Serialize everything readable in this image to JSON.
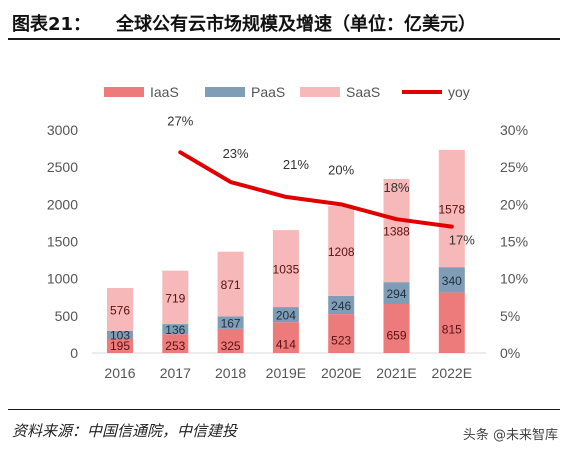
{
  "header": {
    "prefix": "图表21：",
    "title": "全球公有云市场规模及增速（单位：亿美元）"
  },
  "footer": {
    "source": "资料来源：中国信通院，中信建投",
    "watermark": "头条 @未来智库"
  },
  "chart_data": {
    "type": "bar",
    "stacked": true,
    "categories": [
      "2016",
      "2017",
      "2018",
      "2019E",
      "2020E",
      "2021E",
      "2022E"
    ],
    "series": [
      {
        "name": "IaaS",
        "values": [
          195,
          253,
          325,
          414,
          523,
          659,
          815
        ],
        "color": "#ee7b7b"
      },
      {
        "name": "PaaS",
        "values": [
          103,
          136,
          167,
          204,
          246,
          294,
          340
        ],
        "color": "#7f9db6"
      },
      {
        "name": "SaaS",
        "values": [
          576,
          719,
          871,
          1035,
          1208,
          1388,
          1578
        ],
        "color": "#f6b8b8"
      }
    ],
    "line_series": {
      "name": "yoy",
      "x": [
        "2017",
        "2018",
        "2019E",
        "2020E",
        "2021E",
        "2022E"
      ],
      "values": [
        27,
        23,
        21,
        20,
        18,
        17
      ],
      "labels": [
        "27%",
        "23%",
        "21%",
        "20%",
        "18%",
        "17%"
      ],
      "color": "#e00000"
    },
    "ylim": [
      0,
      3000
    ],
    "yticks": [
      "0",
      "500",
      "1000",
      "1500",
      "2000",
      "2500",
      "3000"
    ],
    "y2lim": [
      0,
      30
    ],
    "y2ticks": [
      "0%",
      "5%",
      "10%",
      "15%",
      "20%",
      "25%",
      "30%"
    ],
    "legend_position": "top",
    "grid": false
  }
}
